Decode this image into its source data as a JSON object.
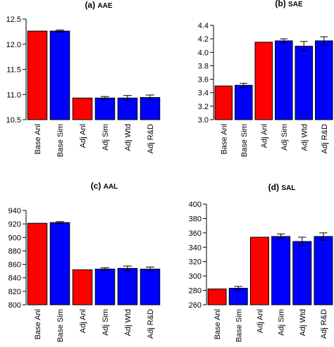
{
  "chart_data": [
    {
      "type": "bar",
      "panel_label": "(a)",
      "title": "AAE",
      "categories": [
        "Base Anl",
        "Base Sim",
        "Adj Anl",
        "Adj Sim",
        "Adj Wtd",
        "Adj R&D"
      ],
      "values": [
        12.26,
        12.26,
        10.93,
        10.93,
        10.93,
        10.94
      ],
      "errors": [
        0,
        0.02,
        0,
        0.03,
        0.05,
        0.05
      ],
      "colors": [
        "#ff0000",
        "#0000ff",
        "#ff0000",
        "#0000ff",
        "#0000ff",
        "#0000ff"
      ],
      "ylim": [
        10.5,
        12.5
      ],
      "yticks": [
        "10.5",
        "11.0",
        "11.5",
        "12.0",
        "12.5"
      ],
      "grid": false
    },
    {
      "type": "bar",
      "panel_label": "(b)",
      "title": "SAE",
      "categories": [
        "Base Anl",
        "Base Sim",
        "Adj Anl",
        "Adj Sim",
        "Adj Wtd",
        "Adj R&D"
      ],
      "values": [
        3.5,
        3.51,
        4.15,
        4.17,
        4.09,
        4.17
      ],
      "errors": [
        0,
        0.03,
        0,
        0.03,
        0.07,
        0.06
      ],
      "colors": [
        "#ff0000",
        "#0000ff",
        "#ff0000",
        "#0000ff",
        "#0000ff",
        "#0000ff"
      ],
      "ylim": [
        3.0,
        4.4
      ],
      "yticks": [
        "3.0",
        "3.2",
        "3.4",
        "3.6",
        "3.8",
        "4.0",
        "4.2",
        "4.4"
      ],
      "grid": false
    },
    {
      "type": "bar",
      "panel_label": "(c)",
      "title": "AAL",
      "categories": [
        "Base Anl",
        "Base Sim",
        "Adj Anl",
        "Adj Sim",
        "Adj Wtd",
        "Adj R&D"
      ],
      "values": [
        921,
        922,
        852,
        853,
        854,
        853
      ],
      "errors": [
        0,
        1.5,
        0,
        2,
        3.5,
        3
      ],
      "colors": [
        "#ff0000",
        "#0000ff",
        "#ff0000",
        "#0000ff",
        "#0000ff",
        "#0000ff"
      ],
      "ylim": [
        800,
        940
      ],
      "yticks": [
        "800",
        "820",
        "840",
        "860",
        "880",
        "900",
        "920",
        "940"
      ],
      "grid": false
    },
    {
      "type": "bar",
      "panel_label": "(d)",
      "title": "SAL",
      "categories": [
        "Base Anl",
        "Base Sim",
        "Adj Anl",
        "Adj Sim",
        "Adj Wtd",
        "Adj R&D"
      ],
      "values": [
        282,
        283,
        354,
        355,
        348,
        355
      ],
      "errors": [
        0,
        2.5,
        0,
        3.5,
        6,
        5
      ],
      "colors": [
        "#ff0000",
        "#0000ff",
        "#ff0000",
        "#0000ff",
        "#0000ff",
        "#0000ff"
      ],
      "ylim": [
        260,
        400
      ],
      "yticks": [
        "260",
        "280",
        "300",
        "320",
        "340",
        "360",
        "380",
        "400"
      ],
      "grid": false
    }
  ]
}
